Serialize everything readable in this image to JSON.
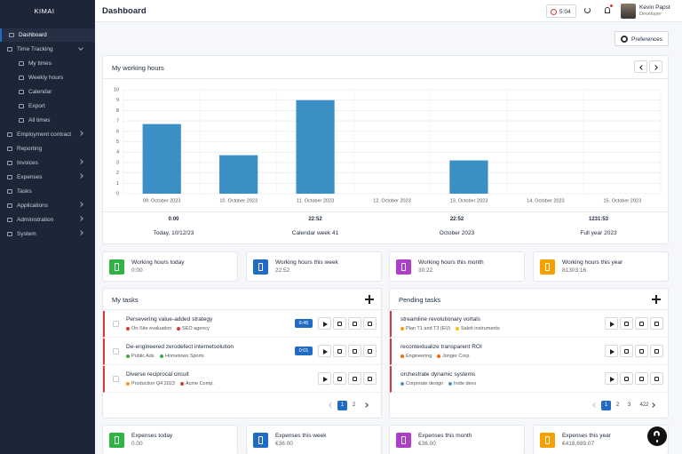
{
  "sidebar": {
    "brand": "KIMAI",
    "items": [
      {
        "label": "Dashboard",
        "active": true
      },
      {
        "label": "Time Tracking",
        "expandable": true,
        "children": [
          {
            "label": "My times"
          },
          {
            "label": "Weekly hours"
          },
          {
            "label": "Calendar"
          },
          {
            "label": "Export"
          },
          {
            "label": "All times"
          }
        ]
      },
      {
        "label": "Employment contract",
        "expandable": true
      },
      {
        "label": "Reporting"
      },
      {
        "label": "Invoices",
        "expandable": true
      },
      {
        "label": "Expenses",
        "expandable": true
      },
      {
        "label": "Tasks"
      },
      {
        "label": "Applications",
        "expandable": true
      },
      {
        "label": "Administration",
        "expandable": true
      },
      {
        "label": "System",
        "expandable": true
      }
    ]
  },
  "header": {
    "title": "Dashboard",
    "timer": "5:04",
    "user_name": "Kevin Papst",
    "user_role": "Developer"
  },
  "preferences": "Preferences",
  "working_hours": {
    "title": "My working hours",
    "chart": {
      "type": "bar",
      "color": "#3a8fc4",
      "categories": [
        "09. October 2023",
        "10. October 2023",
        "11. October 2023",
        "12. October 2023",
        "13. October 2023",
        "14. October 2023",
        "15. October 2023"
      ],
      "values": [
        6.7,
        3.7,
        9,
        0,
        3.2,
        0,
        0
      ],
      "ylim": [
        0,
        10
      ],
      "yticks": [
        0,
        1,
        2,
        3,
        4,
        5,
        6,
        7,
        8,
        9,
        10
      ],
      "grid": true
    },
    "summary": [
      {
        "value": "0:00",
        "label": "Today, 10/12/23"
      },
      {
        "value": "22:52",
        "label": "Calendar week 41"
      },
      {
        "value": "22:52",
        "label": "October 2023"
      },
      {
        "value": "1231:53",
        "label": "Full year 2023"
      }
    ]
  },
  "hour_cards": [
    {
      "title": "Working hours today",
      "value": "0:00",
      "color": "#2fb344"
    },
    {
      "title": "Working hours this week",
      "value": "22:52",
      "color": "#206bc4"
    },
    {
      "title": "Working hours this month",
      "value": "30:22",
      "color": "#ae3ec9"
    },
    {
      "title": "Working hours this year",
      "value": "81303:16",
      "color": "#f59f00"
    }
  ],
  "my_tasks": {
    "title": "My tasks",
    "tasks": [
      {
        "name": "Persevering value-added strategy",
        "tags": [
          {
            "label": "On-Site evaluation",
            "color": "#d63939"
          },
          {
            "label": "SEO agency",
            "color": "#d63939"
          }
        ],
        "duration": "6:45"
      },
      {
        "name": "De-engineered zerodefect internetsolution",
        "tags": [
          {
            "label": "Public Ads",
            "color": "#2fb344"
          },
          {
            "label": "Hometown Sports",
            "color": "#2fb344"
          }
        ],
        "duration": "0:01"
      },
      {
        "name": "Diverse reciprocal circuit",
        "tags": [
          {
            "label": "Production Q4 2023",
            "color": "#f59f00"
          },
          {
            "label": "Acme Comp.",
            "color": "#d63939"
          }
        ]
      }
    ],
    "pages": [
      "1",
      "2"
    ]
  },
  "pending_tasks": {
    "title": "Pending tasks",
    "tasks": [
      {
        "name": "streamline revolutionary vortals",
        "tags": [
          {
            "label": "Plan T1 and T3 (EU)",
            "color": "#f59f00"
          },
          {
            "label": "Saleit instruments",
            "color": "#f7c000"
          }
        ]
      },
      {
        "name": "recontextualize transparent ROI",
        "tags": [
          {
            "label": "Engineering",
            "color": "#f76707"
          },
          {
            "label": "Jonger Corp.",
            "color": "#f76707"
          }
        ]
      },
      {
        "name": "orchestrate dynamic systems",
        "tags": [
          {
            "label": "Corporate design",
            "color": "#4299e1"
          },
          {
            "label": "Indie devs",
            "color": "#4299e1"
          }
        ]
      }
    ],
    "pages": [
      "1",
      "2",
      "3",
      "422"
    ]
  },
  "expense_cards": [
    {
      "title": "Expenses today",
      "value": "0.00",
      "color": "#2fb344"
    },
    {
      "title": "Expenses this week",
      "value": "€36.00",
      "color": "#206bc4"
    },
    {
      "title": "Expenses this month",
      "value": "€36.00",
      "color": "#ae3ec9"
    },
    {
      "title": "Expenses this year",
      "value": "€418,689.07",
      "color": "#f59f00"
    }
  ]
}
